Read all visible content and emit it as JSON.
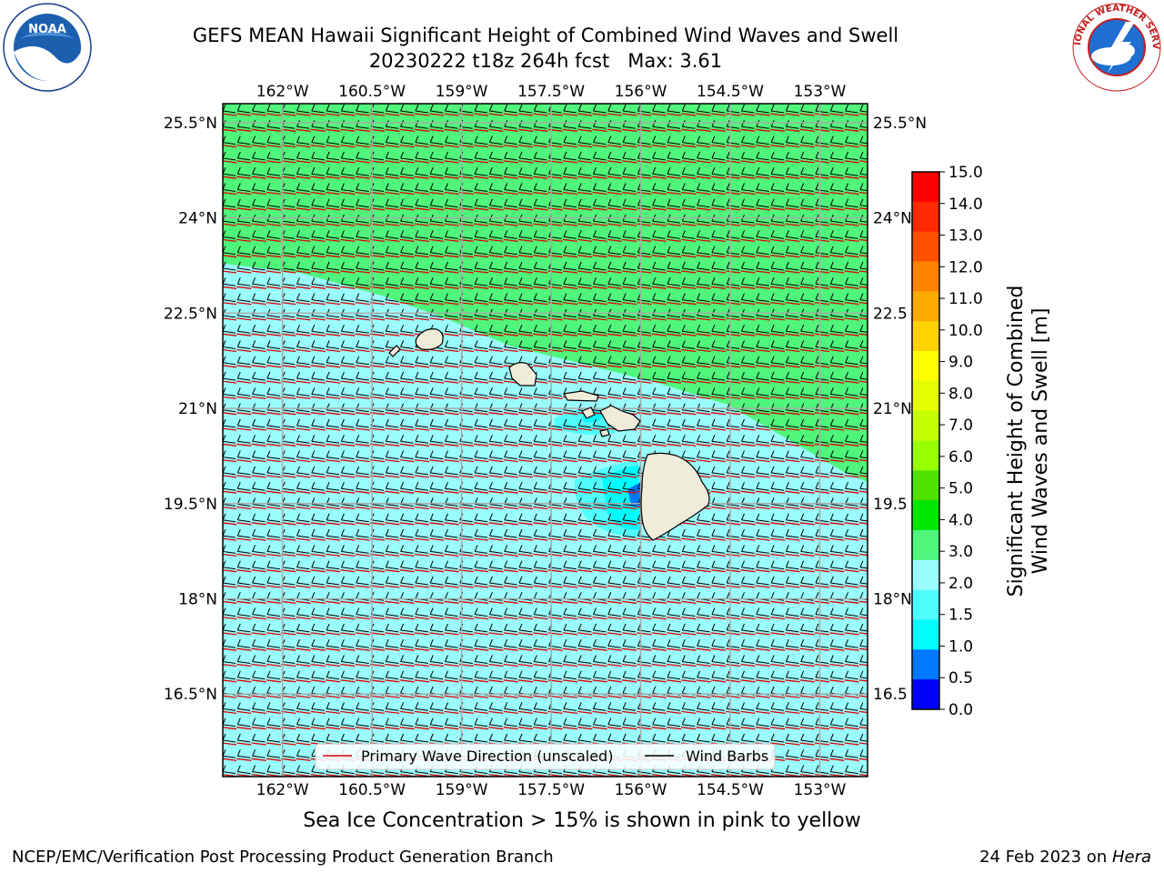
{
  "title": {
    "line1": "GEFS MEAN Hawaii Significant Height of Combined Wind Waves and Swell",
    "line2": "20230222 t18z 264h fcst   Max: 3.61"
  },
  "logos": {
    "left": {
      "icon": "noaa-logo-icon",
      "text": "NOAA"
    },
    "right": {
      "icon": "nws-logo-icon",
      "text": "NATIONAL WEATHER SERVICE"
    }
  },
  "map": {
    "lon_labels": [
      "162°W",
      "160.5°W",
      "159°W",
      "157.5°W",
      "156°W",
      "154.5°W",
      "153°W"
    ],
    "lat_labels_left": [
      "25.5°N",
      "24°N",
      "22.5°N",
      "21°N",
      "19.5°N",
      "18°N",
      "16.5°N"
    ],
    "lat_labels_right": [
      "25.5°N",
      "24°N",
      "22.5",
      "21°N",
      "19.5",
      "18°N",
      "16.5"
    ],
    "lon_range": [
      -163,
      -152.2
    ],
    "lat_range": [
      15.2,
      25.8
    ],
    "colors": {
      "band_3_4": "#50f57b",
      "band_2_3": "#9afcfc",
      "band_15_2": "#50fcfc",
      "band_1_15": "#00fcfc",
      "band_05_1": "#0078ff",
      "land": "#efecda",
      "wave_arrow": "#e00000",
      "barb": "#000000"
    }
  },
  "legend": {
    "wave_label": "Primary Wave Direction (unscaled)",
    "barb_label": "Wind Barbs"
  },
  "colorbar": {
    "label_line1": "Significant Height of Combined",
    "label_line2": "Wind Waves and Swell [m]",
    "ticks": [
      "15.0",
      "14.0",
      "13.0",
      "12.0",
      "11.0",
      "10.0",
      "9.0",
      "8.0",
      "7.0",
      "6.0",
      "5.0",
      "4.0",
      "3.0",
      "2.0",
      "1.5",
      "1.0",
      "0.5",
      "0.0"
    ],
    "colors_top_to_bottom": [
      "#ff0000",
      "#ff2800",
      "#ff5000",
      "#ff8200",
      "#ffaa00",
      "#ffd200",
      "#ffff00",
      "#e6ff00",
      "#c8ff00",
      "#96ff00",
      "#50e100",
      "#00e600",
      "#50f57b",
      "#9afcfc",
      "#50fcfc",
      "#00fcfc",
      "#0078ff",
      "#0000ff"
    ]
  },
  "notes": {
    "sea_ice": "Sea Ice Concentration > 15% is shown in pink to yellow"
  },
  "footer": {
    "left": "NCEP/EMC/Verification Post Processing Product Generation Branch",
    "right_prefix": "24 Feb 2023 on ",
    "right_host": "Hera"
  }
}
